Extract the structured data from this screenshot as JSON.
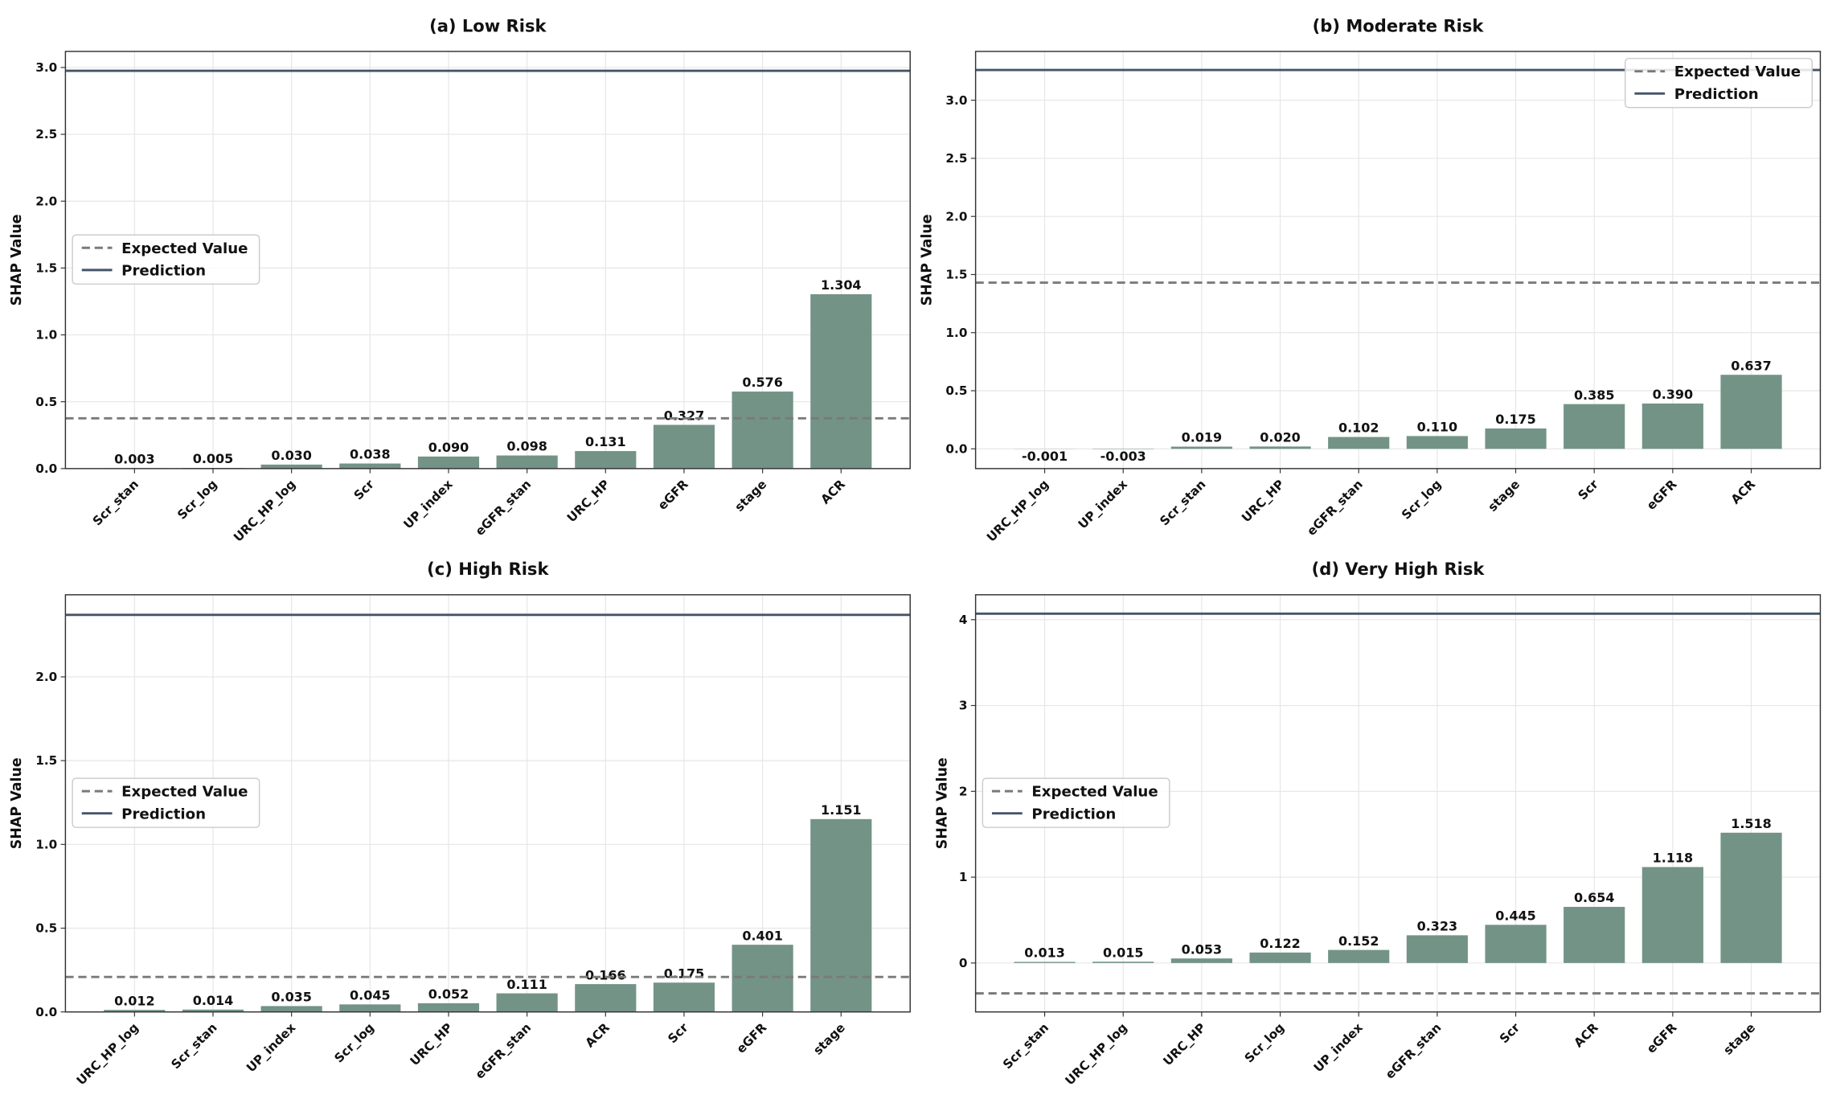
{
  "chart_data": [
    {
      "type": "bar",
      "title": "(a) Low Risk",
      "y_label": "SHAP Value",
      "categories": [
        "Scr_stan",
        "Scr_log",
        "URC_HP_log",
        "Scr",
        "UP_index",
        "eGFR_stan",
        "URC_HP",
        "eGFR",
        "stage",
        "ACR"
      ],
      "values": [
        0.003,
        0.005,
        0.03,
        0.038,
        0.09,
        0.098,
        0.131,
        0.327,
        0.576,
        1.304
      ],
      "value_labels": [
        "0.003",
        "0.005",
        "0.030",
        "0.038",
        "0.090",
        "0.098",
        "0.131",
        "0.327",
        "0.576",
        "1.304"
      ],
      "color": "#739386",
      "ylim": [
        0,
        3.12
      ],
      "yticks": [
        {
          "value": 0,
          "label": "0.0"
        },
        0.5,
        {
          "value": 1,
          "label": "1.0"
        },
        1.5,
        {
          "value": 2,
          "label": "2.0"
        },
        2.5,
        {
          "value": 3,
          "label": "3.0"
        }
      ],
      "grid": true,
      "legend": "center left",
      "reference_lines": [
        {
          "name": "Expected Value",
          "value": 0.376,
          "style": "dashed",
          "color": "#7a7a7a"
        },
        {
          "name": "Prediction",
          "value": 2.975,
          "style": "solid",
          "color": "#44546a"
        }
      ]
    },
    {
      "type": "bar",
      "title": "(b) Moderate Risk",
      "y_label": "SHAP Value",
      "categories": [
        "URC_HP_log",
        "UP_index",
        "Scr_stan",
        "URC_HP",
        "eGFR_stan",
        "Scr_log",
        "stage",
        "Scr",
        "eGFR",
        "ACR"
      ],
      "values": [
        -0.001,
        -0.003,
        0.019,
        0.02,
        0.102,
        0.11,
        0.175,
        0.385,
        0.39,
        0.637
      ],
      "value_labels": [
        "-0.001",
        "-0.003",
        "0.019",
        "0.020",
        "0.102",
        "0.110",
        "0.175",
        "0.385",
        "0.390",
        "0.637"
      ],
      "color": "#739386",
      "ylim": [
        -0.17,
        3.42
      ],
      "yticks": [
        {
          "value": 0,
          "label": "0.0"
        },
        0.5,
        {
          "value": 1,
          "label": "1.0"
        },
        1.5,
        {
          "value": 2,
          "label": "2.0"
        },
        2.5,
        {
          "value": 3,
          "label": "3.0"
        }
      ],
      "grid": true,
      "legend": "upper right",
      "reference_lines": [
        {
          "name": "Expected Value",
          "value": 1.43,
          "style": "dashed",
          "color": "#7a7a7a"
        },
        {
          "name": "Prediction",
          "value": 3.26,
          "style": "solid",
          "color": "#44546a"
        }
      ]
    },
    {
      "type": "bar",
      "title": "(c) High Risk",
      "y_label": "SHAP Value",
      "categories": [
        "URC_HP_log",
        "Scr_stan",
        "UP_index",
        "Scr_log",
        "URC_HP",
        "eGFR_stan",
        "ACR",
        "Scr",
        "eGFR",
        "stage"
      ],
      "values": [
        0.012,
        0.014,
        0.035,
        0.045,
        0.052,
        0.111,
        0.166,
        0.175,
        0.401,
        1.151
      ],
      "value_labels": [
        "0.012",
        "0.014",
        "0.035",
        "0.045",
        "0.052",
        "0.111",
        "0.166",
        "0.175",
        "0.401",
        "1.151"
      ],
      "color": "#739386",
      "ylim": [
        0,
        2.49
      ],
      "yticks": [
        {
          "value": 0,
          "label": "0.0"
        },
        0.5,
        {
          "value": 1,
          "label": "1.0"
        },
        1.5,
        {
          "value": 2,
          "label": "2.0"
        }
      ],
      "grid": true,
      "legend": "center left",
      "reference_lines": [
        {
          "name": "Expected Value",
          "value": 0.209,
          "style": "dashed",
          "color": "#7a7a7a"
        },
        {
          "name": "Prediction",
          "value": 2.37,
          "style": "solid",
          "color": "#44546a"
        }
      ]
    },
    {
      "type": "bar",
      "title": "(d) Very High Risk",
      "y_label": "SHAP Value",
      "categories": [
        "Scr_stan",
        "URC_HP_log",
        "URC_HP",
        "Scr_log",
        "UP_index",
        "eGFR_stan",
        "Scr",
        "ACR",
        "eGFR",
        "stage"
      ],
      "values": [
        0.013,
        0.015,
        0.053,
        0.122,
        0.152,
        0.323,
        0.445,
        0.654,
        1.118,
        1.518
      ],
      "value_labels": [
        "0.013",
        "0.015",
        "0.053",
        "0.122",
        "0.152",
        "0.323",
        "0.445",
        "0.654",
        "1.118",
        "1.518"
      ],
      "color": "#739386",
      "ylim": [
        -0.57,
        4.29
      ],
      "yticks": [
        0,
        1,
        2,
        3,
        4
      ],
      "grid": true,
      "legend": "center left",
      "reference_lines": [
        {
          "name": "Expected Value",
          "value": -0.354,
          "style": "dashed",
          "color": "#7a7a7a"
        },
        {
          "name": "Prediction",
          "value": 4.07,
          "style": "solid",
          "color": "#44546a"
        }
      ]
    }
  ]
}
